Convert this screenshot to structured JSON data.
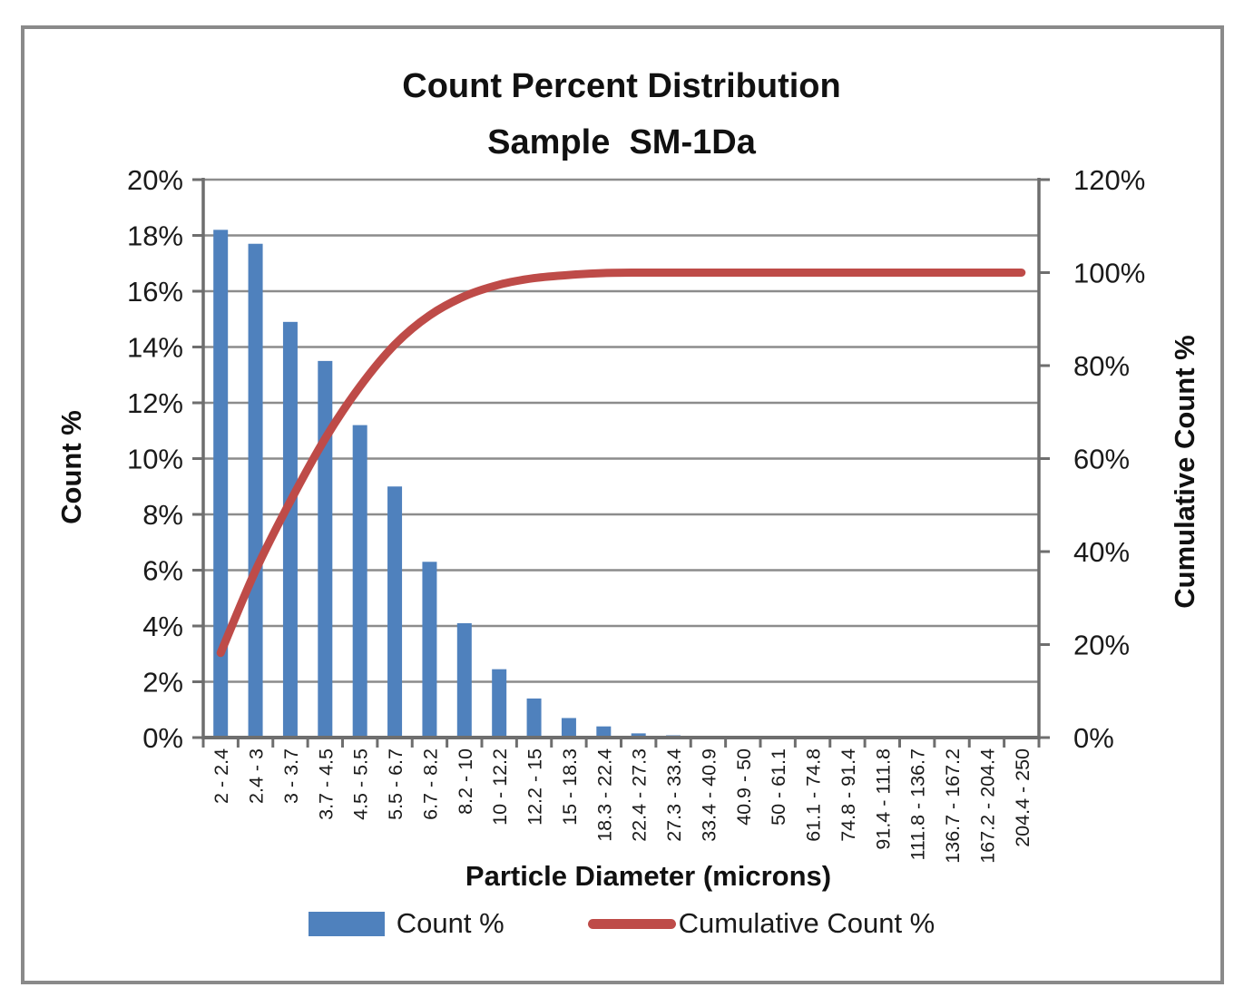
{
  "title": {
    "line1": "Count Percent Distribution",
    "line2": "Sample  SM-1Da"
  },
  "axes": {
    "left_label": "Count %",
    "right_label": "Cumulative Count %",
    "x_label": "Particle Diameter (microns)"
  },
  "legend": {
    "count_label": "Count %",
    "cumulative_label": "Cumulative Count %"
  },
  "colors": {
    "bar": "#4F81BD",
    "line": "#BE4B48",
    "gridline": "#8c8c8c",
    "axis": "#6e6e6e",
    "text": "#1a1a1a",
    "frame": "#8a8a8a"
  },
  "chart_data": {
    "type": "bar",
    "subtype": "pareto (bar + cumulative line)",
    "title": "Count Percent Distribution Sample SM-1Da",
    "xlabel": "Particle Diameter (microns)",
    "ylabel_left": "Count %",
    "ylabel_right": "Cumulative Count %",
    "grid": true,
    "legend_position": "bottom",
    "categories": [
      "2 - 2.4",
      "2.4 - 3",
      "3 - 3.7",
      "3.7 - 4.5",
      "4.5 - 5.5",
      "5.5 - 6.7",
      "6.7 - 8.2",
      "8.2 - 10",
      "10 - 12.2",
      "12.2 - 15",
      "15 - 18.3",
      "18.3 - 22.4",
      "22.4 - 27.3",
      "27.3 - 33.4",
      "33.4 - 40.9",
      "40.9 - 50",
      "50 - 61.1",
      "61.1 - 74.8",
      "74.8 - 91.4",
      "91.4 - 111.8",
      "111.8 - 136.7",
      "136.7 - 167.2",
      "167.2 - 204.4",
      "204.4 - 250"
    ],
    "series": [
      {
        "name": "Count %",
        "type": "bar",
        "axis": "left",
        "color": "#4F81BD",
        "values": [
          18.2,
          17.7,
          14.9,
          13.5,
          11.2,
          9.0,
          6.3,
          4.1,
          2.45,
          1.4,
          0.7,
          0.4,
          0.15,
          0.08,
          0,
          0,
          0,
          0,
          0,
          0,
          0,
          0,
          0,
          0
        ]
      },
      {
        "name": "Cumulative Count %",
        "type": "line",
        "axis": "right",
        "color": "#BE4B48",
        "values": [
          18.2,
          35.9,
          50.8,
          64.3,
          75.5,
          84.5,
          90.8,
          94.9,
          97.4,
          98.8,
          99.5,
          99.9,
          100,
          100,
          100,
          100,
          100,
          100,
          100,
          100,
          100,
          100,
          100,
          100
        ]
      }
    ],
    "left_axis": {
      "min": 0,
      "max": 20,
      "tick_values": [
        0,
        2,
        4,
        6,
        8,
        10,
        12,
        14,
        16,
        18,
        20
      ],
      "tick_labels": [
        "0%",
        "2%",
        "4%",
        "6%",
        "8%",
        "10%",
        "12%",
        "14%",
        "16%",
        "18%",
        "20%"
      ]
    },
    "right_axis": {
      "min": 0,
      "max": 120,
      "tick_values": [
        0,
        20,
        40,
        60,
        80,
        100,
        120
      ],
      "tick_labels": [
        "0%",
        "20%",
        "40%",
        "60%",
        "80%",
        "100%",
        "120%"
      ]
    }
  }
}
